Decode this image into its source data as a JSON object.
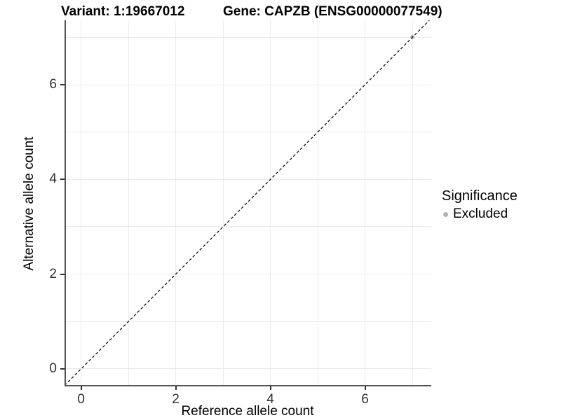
{
  "chart_data": {
    "type": "scatter",
    "title_left": "Variant: 1:19667012",
    "title_right": "Gene: CAPZB (ENSG00000077549)",
    "xlabel": "Reference allele count",
    "ylabel": "Alternative allele count",
    "xlim": [
      -0.35,
      7.4
    ],
    "ylim": [
      -0.37,
      7.36
    ],
    "xticks": [
      0,
      2,
      4,
      6
    ],
    "yticks": [
      0,
      2,
      4,
      6
    ],
    "gridlines": [
      0,
      1,
      2,
      3,
      4,
      5,
      6,
      7
    ],
    "grid": "on",
    "reference_line": {
      "type": "identity",
      "style": "dashed",
      "color": "#000000"
    },
    "legend": {
      "title": "Significance",
      "position": "right",
      "items": [
        {
          "label": "Excluded",
          "color": "#b3b3b3"
        }
      ]
    },
    "series": [
      {
        "name": "Excluded",
        "color": "#b3b3b3",
        "points": [
          {
            "x": 7,
            "y": 7
          }
        ]
      }
    ]
  }
}
